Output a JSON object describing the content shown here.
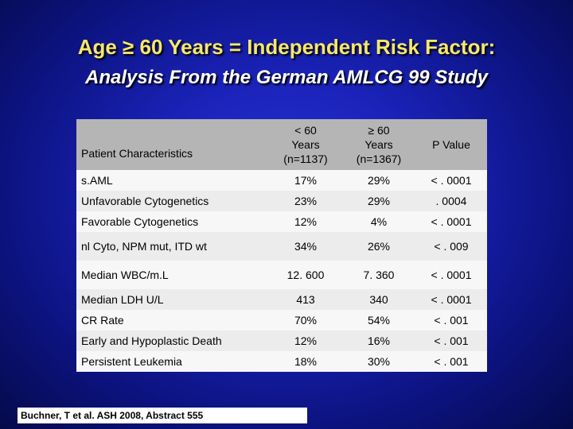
{
  "title": "Age ≥ 60 Years = Independent Risk Factor:",
  "subtitle": "Analysis From the German AMLCG 99 Study",
  "table": {
    "headers": {
      "characteristic": "Patient Characteristics",
      "under60_line1": "< 60",
      "under60_line2": "Years",
      "under60_line3": "(n=1137)",
      "over60_line1": "≥ 60",
      "over60_line2": "Years",
      "over60_line3": "(n=1367)",
      "pvalue": "P Value"
    },
    "rows": [
      {
        "characteristic": "s.AML",
        "under60": "17%",
        "over60": "29%",
        "pvalue": "< . 0001"
      },
      {
        "characteristic": "Unfavorable Cytogenetics",
        "under60": "23%",
        "over60": "29%",
        "pvalue": ". 0004"
      },
      {
        "characteristic": "Favorable Cytogenetics",
        "under60": "12%",
        "over60": "4%",
        "pvalue": "< . 0001"
      },
      {
        "characteristic": "nl Cyto, NPM mut, ITD wt",
        "under60": "34%",
        "over60": "26%",
        "pvalue": "< . 009"
      },
      {
        "characteristic": "Median WBC/m.L",
        "under60": "12. 600",
        "over60": "7. 360",
        "pvalue": "< . 0001"
      },
      {
        "characteristic": "Median LDH U/L",
        "under60": "413",
        "over60": "340",
        "pvalue": "< . 0001"
      },
      {
        "characteristic": "CR Rate",
        "under60": "70%",
        "over60": "54%",
        "pvalue": "< . 001"
      },
      {
        "characteristic": "Early and Hypoplastic Death",
        "under60": "12%",
        "over60": "16%",
        "pvalue": "< . 001"
      },
      {
        "characteristic": "Persistent Leukemia",
        "under60": "18%",
        "over60": "30%",
        "pvalue": "< . 001"
      }
    ]
  },
  "citation": "Buchner, T et al. ASH 2008, Abstract 555"
}
